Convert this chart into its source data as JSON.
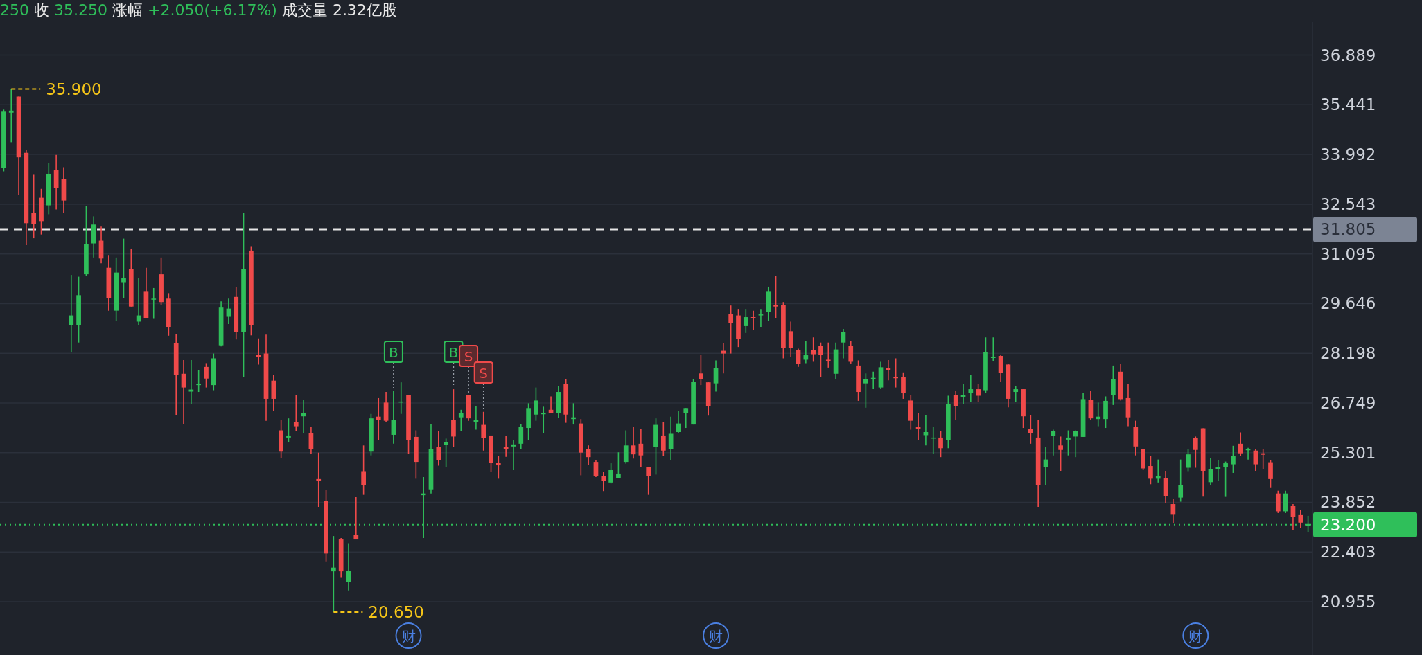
{
  "chart_data": {
    "type": "candlestick",
    "title": "250 收 35.250 涨幅 +2.050(+6.17%) 成交量 2.32亿股",
    "categories": [
      null,
      null,
      null,
      null,
      null,
      null,
      null,
      null,
      null,
      null,
      null,
      null,
      null,
      null,
      null,
      null,
      null,
      null,
      null,
      null,
      null,
      null,
      null,
      null,
      null,
      null,
      null,
      null,
      null,
      null,
      null,
      null,
      null,
      null,
      null,
      null,
      null,
      null,
      null,
      null,
      null,
      null,
      null,
      null,
      null,
      null,
      null,
      null,
      null,
      null,
      null,
      null,
      null,
      null,
      null,
      null,
      null,
      null,
      null,
      null,
      null,
      null,
      null,
      null,
      null,
      null,
      null,
      null,
      null,
      null,
      null,
      null,
      null,
      null,
      null,
      null,
      null,
      null,
      null,
      null,
      null,
      null,
      null,
      null,
      null,
      null,
      null,
      null,
      null,
      null,
      null,
      null,
      null,
      null,
      null,
      null,
      null,
      null,
      null,
      null,
      null,
      null,
      null,
      null,
      null,
      null,
      null,
      null,
      null,
      null,
      null,
      null,
      null,
      null,
      null,
      null,
      null,
      null,
      null,
      null,
      null,
      null,
      null,
      null,
      null,
      null,
      null,
      null,
      null,
      null,
      null,
      null,
      null,
      null,
      null,
      null,
      null,
      null,
      null,
      null,
      null,
      null,
      null,
      null,
      null,
      null,
      null,
      null,
      null,
      null,
      null,
      null,
      null,
      null,
      null,
      null,
      null,
      null,
      null,
      null,
      null,
      null,
      null,
      null,
      null,
      null,
      null,
      null,
      null,
      null,
      null,
      null,
      null,
      null,
      null
    ],
    "ohlc": [
      [
        33.6,
        35.3,
        33.5,
        35.24
      ],
      [
        35.21,
        35.9,
        34.35,
        35.27
      ],
      [
        35.68,
        35.68,
        32.81,
        33.91
      ],
      [
        34.04,
        34.13,
        31.35,
        31.99
      ],
      [
        32.29,
        33.4,
        31.55,
        31.96
      ],
      [
        32.73,
        32.99,
        31.66,
        32.05
      ],
      [
        32.51,
        33.74,
        32.25,
        33.43
      ],
      [
        33.53,
        33.98,
        32.39,
        33.01
      ],
      [
        33.27,
        33.62,
        32.3,
        32.65
      ],
      [
        29.01,
        30.48,
        28.22,
        29.3
      ],
      [
        29.01,
        30.43,
        28.51,
        29.89
      ],
      [
        30.5,
        32.5,
        30.46,
        31.39
      ],
      [
        31.4,
        32.19,
        30.99,
        31.95
      ],
      [
        31.48,
        31.89,
        30.82,
        30.96
      ],
      [
        30.69,
        31.04,
        29.44,
        29.8
      ],
      [
        29.44,
        30.99,
        29.15,
        30.55
      ],
      [
        30.25,
        31.54,
        29.8,
        30.4
      ],
      [
        30.65,
        31.25,
        29.56,
        29.56
      ],
      [
        29.12,
        30.4,
        29.01,
        29.3
      ],
      [
        29.99,
        30.69,
        29.21,
        29.21
      ],
      [
        29.76,
        30.1,
        29.2,
        29.79
      ],
      [
        30.5,
        30.99,
        29.61,
        29.69
      ],
      [
        29.79,
        29.95,
        28.71,
        28.96
      ],
      [
        28.5,
        28.76,
        26.4,
        27.56
      ],
      [
        27.6,
        28.0,
        26.12,
        27.2
      ],
      [
        27.08,
        28.0,
        26.71,
        27.14
      ],
      [
        27.27,
        27.71,
        27.07,
        27.3
      ],
      [
        27.8,
        27.91,
        27.2,
        27.46
      ],
      [
        27.27,
        28.19,
        27.12,
        28.05
      ],
      [
        28.43,
        29.71,
        28.4,
        29.53
      ],
      [
        29.26,
        29.79,
        29.05,
        29.5
      ],
      [
        29.84,
        30.14,
        28.6,
        28.81
      ],
      [
        28.81,
        32.29,
        27.5,
        30.65
      ],
      [
        31.19,
        31.3,
        28.72,
        29.01
      ],
      [
        28.15,
        28.63,
        27.87,
        28.09
      ],
      [
        28.19,
        28.74,
        26.23,
        26.87
      ],
      [
        27.4,
        27.56,
        26.52,
        26.87
      ],
      [
        25.95,
        26.26,
        25.15,
        25.33
      ],
      [
        25.74,
        26.3,
        25.61,
        25.8
      ],
      [
        26.2,
        26.99,
        25.92,
        26.07
      ],
      [
        26.36,
        26.84,
        25.87,
        26.45
      ],
      [
        25.87,
        26.04,
        25.27,
        25.41
      ],
      [
        24.53,
        25.3,
        23.72,
        24.48
      ],
      [
        23.9,
        24.21,
        22.13,
        22.36
      ],
      [
        21.84,
        22.87,
        20.65,
        21.95
      ],
      [
        22.77,
        22.81,
        21.65,
        21.84
      ],
      [
        21.53,
        22.66,
        21.28,
        21.85
      ],
      [
        22.9,
        24.0,
        22.77,
        22.77
      ],
      [
        24.76,
        25.51,
        24.07,
        24.36
      ],
      [
        25.33,
        26.43,
        25.22,
        26.3
      ],
      [
        26.35,
        26.89,
        25.67,
        26.26
      ],
      [
        26.76,
        27.07,
        26.2,
        26.23
      ],
      [
        25.82,
        27.09,
        25.56,
        26.25
      ],
      [
        26.76,
        27.35,
        26.43,
        26.79
      ],
      [
        26.99,
        26.99,
        25.27,
        25.66
      ],
      [
        25.76,
        25.95,
        24.54,
        25.03
      ],
      [
        24.06,
        24.59,
        22.81,
        24.11
      ],
      [
        24.23,
        26.14,
        24.11,
        25.41
      ],
      [
        25.46,
        25.92,
        24.92,
        25.08
      ],
      [
        25.53,
        25.71,
        24.89,
        25.61
      ],
      [
        26.26,
        27.15,
        25.46,
        25.77
      ],
      [
        26.33,
        26.55,
        25.92,
        26.45
      ],
      [
        26.99,
        26.99,
        26.23,
        26.3
      ],
      [
        26.2,
        26.66,
        25.97,
        26.25
      ],
      [
        26.11,
        26.49,
        25.36,
        25.72
      ],
      [
        25.8,
        25.8,
        24.74,
        25.0
      ],
      [
        25.0,
        25.2,
        24.54,
        24.93
      ],
      [
        25.46,
        25.8,
        25.18,
        25.41
      ],
      [
        25.48,
        25.66,
        24.79,
        25.54
      ],
      [
        25.56,
        26.14,
        25.41,
        26.05
      ],
      [
        26.02,
        26.74,
        25.66,
        26.6
      ],
      [
        26.41,
        27.2,
        26.23,
        26.82
      ],
      [
        26.42,
        26.64,
        25.87,
        26.45
      ],
      [
        26.55,
        26.94,
        26.46,
        26.46
      ],
      [
        26.46,
        27.25,
        26.31,
        27.07
      ],
      [
        27.3,
        27.45,
        26.17,
        26.41
      ],
      [
        26.28,
        26.74,
        26.12,
        26.33
      ],
      [
        26.15,
        26.28,
        24.64,
        25.3
      ],
      [
        25.41,
        25.51,
        24.95,
        25.17
      ],
      [
        25.03,
        25.08,
        24.59,
        24.62
      ],
      [
        24.61,
        24.74,
        24.18,
        24.47
      ],
      [
        24.43,
        24.99,
        24.4,
        24.79
      ],
      [
        24.55,
        25.31,
        24.55,
        24.69
      ],
      [
        25.03,
        25.95,
        24.98,
        25.51
      ],
      [
        25.51,
        26.04,
        25.13,
        25.25
      ],
      [
        25.56,
        26.0,
        24.87,
        25.22
      ],
      [
        24.89,
        24.89,
        24.07,
        24.61
      ],
      [
        25.46,
        26.3,
        24.66,
        26.11
      ],
      [
        25.8,
        26.2,
        25.2,
        25.36
      ],
      [
        25.41,
        26.35,
        25.08,
        25.85
      ],
      [
        25.9,
        26.51,
        25.87,
        26.15
      ],
      [
        26.46,
        26.6,
        26.02,
        26.6
      ],
      [
        26.12,
        27.45,
        26.12,
        27.37
      ],
      [
        27.61,
        28.15,
        27.27,
        27.45
      ],
      [
        27.35,
        27.35,
        26.38,
        26.66
      ],
      [
        27.32,
        27.99,
        27.08,
        27.76
      ],
      [
        28.27,
        28.5,
        27.61,
        28.19
      ],
      [
        29.35,
        29.59,
        28.19,
        29.07
      ],
      [
        29.3,
        29.47,
        28.38,
        28.61
      ],
      [
        28.99,
        29.47,
        28.79,
        29.25
      ],
      [
        29.25,
        29.44,
        28.87,
        29.22
      ],
      [
        29.3,
        29.47,
        28.96,
        29.33
      ],
      [
        29.4,
        30.14,
        29.13,
        29.99
      ],
      [
        29.61,
        30.45,
        29.22,
        29.56
      ],
      [
        29.61,
        29.69,
        28.05,
        28.36
      ],
      [
        28.84,
        29.12,
        28.1,
        28.36
      ],
      [
        28.3,
        28.33,
        27.8,
        27.89
      ],
      [
        28.01,
        28.55,
        27.91,
        28.14
      ],
      [
        28.3,
        28.66,
        27.95,
        28.17
      ],
      [
        28.41,
        28.51,
        27.5,
        28.15
      ],
      [
        28.01,
        28.51,
        27.78,
        27.98
      ],
      [
        27.6,
        28.51,
        27.45,
        28.31
      ],
      [
        28.51,
        28.91,
        28.05,
        28.81
      ],
      [
        28.41,
        28.56,
        27.9,
        27.95
      ],
      [
        27.84,
        27.99,
        26.81,
        27.07
      ],
      [
        27.32,
        27.61,
        26.61,
        27.45
      ],
      [
        27.45,
        27.66,
        27.15,
        27.48
      ],
      [
        27.2,
        27.95,
        27.15,
        27.79
      ],
      [
        27.76,
        28.0,
        27.41,
        27.71
      ],
      [
        27.51,
        28.05,
        27.2,
        27.47
      ],
      [
        27.51,
        27.64,
        26.87,
        27.03
      ],
      [
        26.82,
        26.99,
        25.97,
        26.23
      ],
      [
        26.06,
        26.45,
        25.66,
        25.98
      ],
      [
        25.81,
        26.4,
        25.51,
        25.9
      ],
      [
        25.71,
        26.05,
        25.27,
        25.74
      ],
      [
        25.74,
        25.92,
        25.17,
        25.43
      ],
      [
        25.66,
        26.96,
        25.43,
        26.71
      ],
      [
        26.99,
        27.1,
        26.26,
        26.66
      ],
      [
        26.93,
        27.3,
        26.72,
        26.99
      ],
      [
        27.03,
        27.56,
        26.77,
        27.15
      ],
      [
        27.15,
        27.3,
        26.77,
        26.96
      ],
      [
        27.12,
        28.66,
        27.03,
        28.24
      ],
      [
        28.06,
        28.66,
        27.97,
        28.09
      ],
      [
        28.12,
        28.15,
        27.37,
        27.62
      ],
      [
        27.87,
        27.9,
        26.62,
        26.87
      ],
      [
        27.07,
        27.25,
        26.77,
        27.15
      ],
      [
        27.15,
        27.15,
        26.02,
        26.36
      ],
      [
        26.0,
        26.4,
        25.56,
        25.87
      ],
      [
        25.74,
        26.26,
        23.72,
        24.36
      ],
      [
        24.87,
        25.46,
        24.36,
        25.1
      ],
      [
        25.79,
        25.97,
        25.22,
        25.92
      ],
      [
        25.51,
        25.77,
        24.77,
        25.38
      ],
      [
        25.68,
        25.95,
        25.22,
        25.74
      ],
      [
        25.77,
        25.95,
        25.17,
        25.92
      ],
      [
        25.76,
        27.05,
        25.76,
        26.86
      ],
      [
        26.84,
        27.1,
        26.26,
        26.3
      ],
      [
        26.28,
        26.76,
        26.07,
        26.35
      ],
      [
        26.28,
        26.94,
        26.02,
        26.81
      ],
      [
        26.97,
        27.84,
        26.69,
        27.45
      ],
      [
        27.66,
        27.9,
        26.82,
        26.86
      ],
      [
        26.89,
        27.3,
        26.07,
        26.33
      ],
      [
        26.05,
        26.23,
        25.22,
        25.48
      ],
      [
        25.41,
        25.41,
        24.79,
        24.84
      ],
      [
        24.91,
        25.2,
        24.38,
        24.54
      ],
      [
        24.54,
        25.1,
        24.43,
        24.61
      ],
      [
        24.56,
        24.77,
        23.82,
        24.03
      ],
      [
        23.8,
        23.95,
        23.24,
        23.49
      ],
      [
        23.99,
        25.1,
        23.87,
        24.35
      ],
      [
        24.86,
        25.41,
        24.76,
        25.25
      ],
      [
        25.72,
        25.77,
        24.86,
        25.38
      ],
      [
        26.01,
        26.01,
        24.02,
        24.77
      ],
      [
        24.44,
        25.14,
        24.35,
        24.83
      ],
      [
        24.83,
        25.08,
        24.47,
        24.87
      ],
      [
        24.87,
        25.04,
        24.01,
        24.99
      ],
      [
        24.96,
        25.5,
        24.71,
        25.2
      ],
      [
        25.56,
        25.89,
        25.2,
        25.28
      ],
      [
        25.37,
        25.44,
        25.1,
        25.4
      ],
      [
        25.36,
        25.4,
        24.77,
        24.96
      ],
      [
        25.28,
        25.4,
        24.81,
        25.24
      ],
      [
        25.02,
        25.08,
        24.27,
        24.53
      ],
      [
        24.11,
        24.19,
        23.54,
        23.59
      ],
      [
        23.59,
        24.19,
        23.54,
        24.11
      ],
      [
        23.74,
        23.8,
        23.05,
        23.42
      ],
      [
        23.48,
        23.62,
        23.1,
        23.26
      ],
      [
        23.17,
        23.46,
        22.98,
        23.22
      ]
    ],
    "ylim": [
      19.4,
      37.85
    ],
    "yticks": [
      20.955,
      22.403,
      23.852,
      25.301,
      26.749,
      28.198,
      29.646,
      31.095,
      32.543,
      33.992,
      35.441,
      36.889
    ],
    "ref_lines": [
      {
        "axis": "y",
        "value": 31.805,
        "label": "31.805",
        "color": "#e6e6e6",
        "line_style": "dashed"
      },
      {
        "axis": "y",
        "value": 23.2,
        "label": "23.200",
        "color": "#2fbf5a",
        "line_style": "dotted"
      }
    ],
    "annotations": [
      "35.900",
      "20.650",
      "B",
      "B",
      "S",
      "S",
      "财",
      "财",
      "财"
    ],
    "grid": "y",
    "tick_labels": "y"
  }
}
